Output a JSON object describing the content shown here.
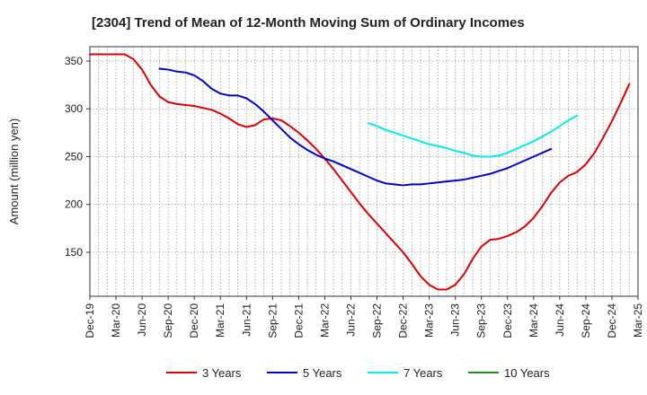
{
  "chart_data": {
    "type": "line",
    "title": "[2304]  Trend of Mean of 12-Month Moving Sum of Ordinary Incomes",
    "ylabel": "Amount (million yen)",
    "xlabel": "",
    "ylim": [
      104,
      365
    ],
    "yticks": [
      150,
      200,
      250,
      300,
      350
    ],
    "x_tick_labels": [
      "Dec-19",
      "Mar-20",
      "Jun-20",
      "Sep-20",
      "Dec-20",
      "Mar-21",
      "Jun-21",
      "Sep-21",
      "Dec-21",
      "Mar-22",
      "Jun-22",
      "Sep-22",
      "Dec-22",
      "Mar-23",
      "Jun-23",
      "Sep-23",
      "Dec-23",
      "Mar-24",
      "Jun-24",
      "Sep-24",
      "Dec-24",
      "Mar-25"
    ],
    "x_start": "Dec-19",
    "x_range_months": [
      0,
      63
    ],
    "grid": true,
    "legend_position": "bottom",
    "series": [
      {
        "name": "3 Years",
        "color": "#dd0000",
        "start_month": 0,
        "values": [
          357,
          357,
          357,
          357,
          357,
          352,
          341,
          325,
          313,
          307,
          305,
          304,
          303,
          301,
          299,
          295,
          290,
          284,
          281,
          283,
          289,
          290,
          288,
          282,
          275,
          267,
          258,
          248,
          237,
          225,
          213,
          201,
          190,
          180,
          170,
          160,
          150,
          138,
          125,
          116,
          111,
          111,
          116,
          127,
          143,
          156,
          163,
          164,
          167,
          171,
          177,
          186,
          198,
          212,
          223,
          230,
          234,
          242,
          254,
          270,
          287,
          306,
          326
        ]
      },
      {
        "name": "5 Years",
        "color": "#0000cc",
        "start_month": 8,
        "values": [
          342,
          341,
          339,
          338,
          335,
          329,
          321,
          316,
          314,
          314,
          311,
          305,
          297,
          288,
          279,
          270,
          263,
          257,
          252,
          248,
          245,
          241,
          237,
          233,
          229,
          225,
          222,
          221,
          220,
          221,
          221,
          222,
          223,
          224,
          225,
          226,
          228,
          230,
          232,
          235,
          238,
          242,
          246,
          250,
          254,
          258
        ]
      },
      {
        "name": "7 Years",
        "color": "#00eeee",
        "start_month": 32,
        "values": [
          285,
          282,
          278,
          275,
          272,
          269,
          266,
          263,
          261,
          259,
          256,
          254,
          251,
          250,
          250,
          251,
          254,
          258,
          262,
          266,
          271,
          276,
          282,
          288,
          293
        ]
      },
      {
        "name": "10 Years",
        "color": "#228b22",
        "start_month": 0,
        "values": []
      }
    ]
  }
}
